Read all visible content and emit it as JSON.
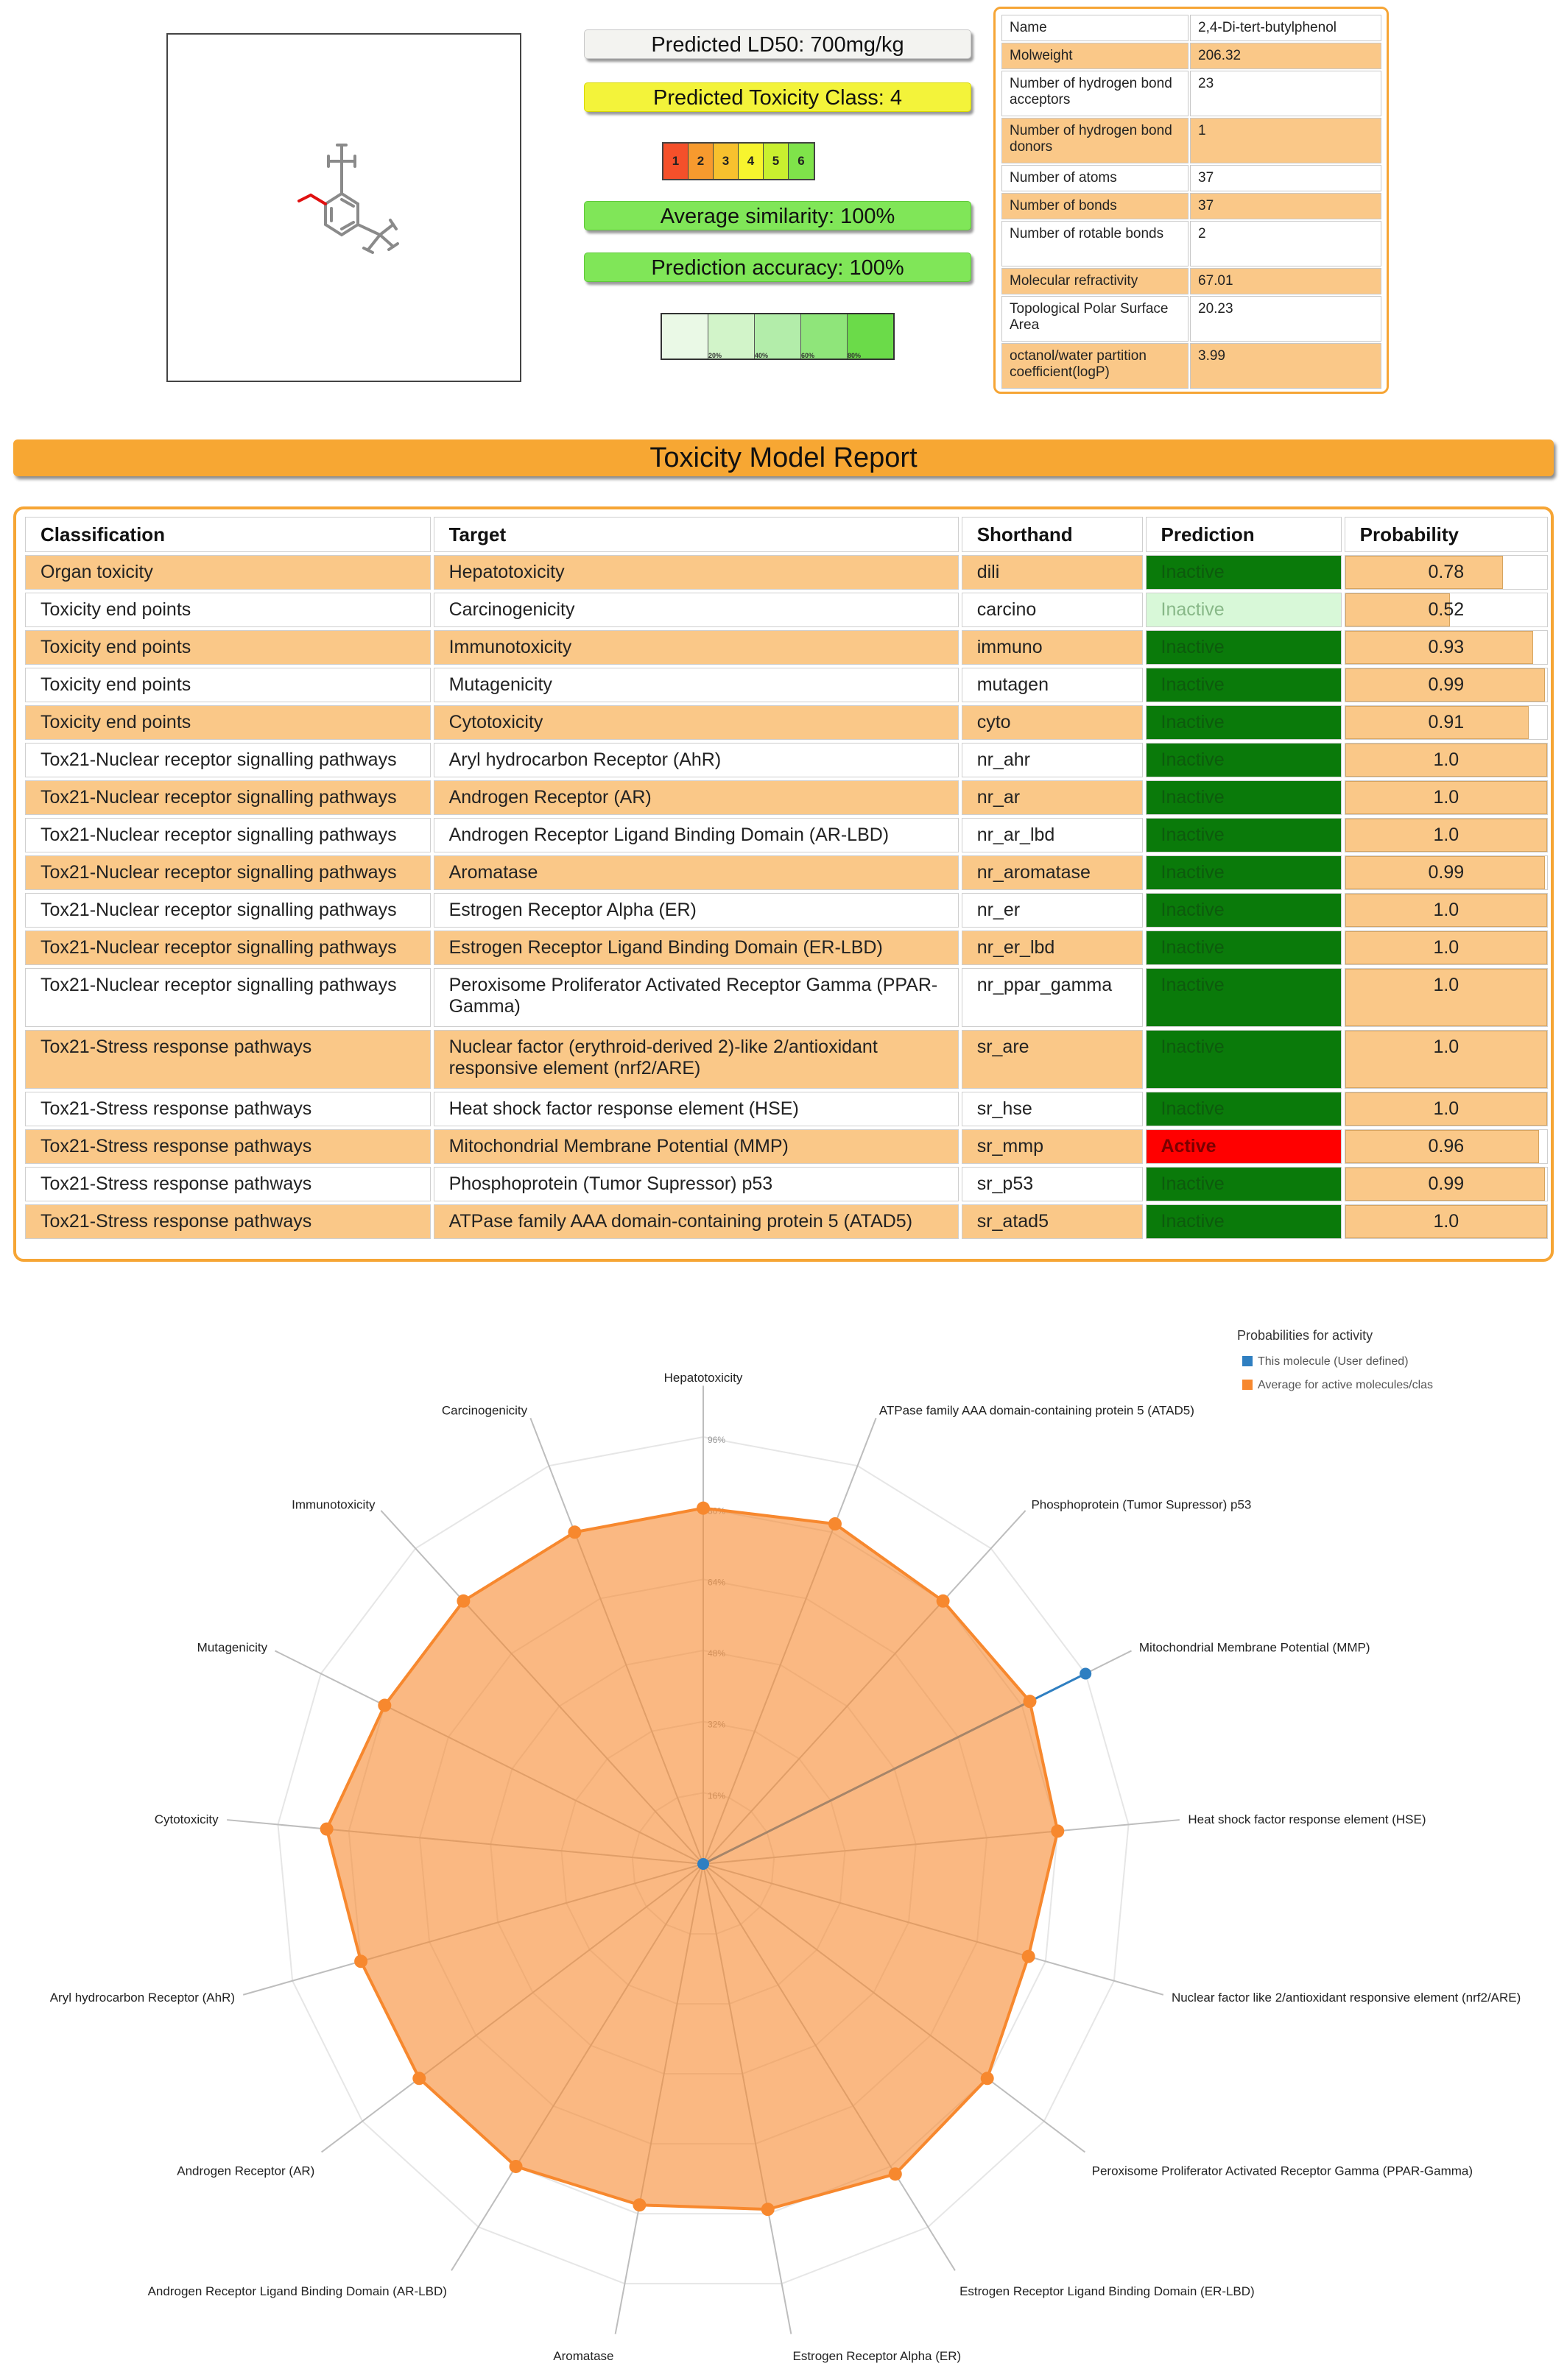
{
  "summary": {
    "ld50": "Predicted LD50: 700mg/kg",
    "toxicity_class": "Predicted Toxicity Class: 4",
    "class_scale": [
      "1",
      "2",
      "3",
      "4",
      "5",
      "6"
    ],
    "class_colors": [
      "#f5502a",
      "#f79a2e",
      "#f7c12e",
      "#f7f42e",
      "#c9f02f",
      "#7fe34a"
    ],
    "average_similarity": "Average similarity: 100%",
    "prediction_accuracy": "Prediction accuracy: 100%",
    "similarity_ticks": [
      "20%",
      "40%",
      "60%",
      "80%"
    ],
    "similarity_colors": [
      "#eaf9e6",
      "#d2f4c9",
      "#b3edaa",
      "#8fe57a",
      "#6bdb49"
    ]
  },
  "properties": [
    {
      "key": "Name",
      "value": "2,4-Di-tert-butylphenol"
    },
    {
      "key": "Molweight",
      "value": "206.32"
    },
    {
      "key": "Number of hydrogen bond acceptors",
      "value": "23"
    },
    {
      "key": "Number of hydrogen bond donors",
      "value": "1"
    },
    {
      "key": "Number of atoms",
      "value": "37"
    },
    {
      "key": "Number of bonds",
      "value": "37"
    },
    {
      "key": "Number of rotable bonds",
      "value": "2"
    },
    {
      "key": "Molecular refractivity",
      "value": "67.01"
    },
    {
      "key": "Topological Polar Surface Area",
      "value": "20.23"
    },
    {
      "key": "octanol/water partition coefficient(logP)",
      "value": "3.99"
    }
  ],
  "report": {
    "title": "Toxicity Model Report",
    "columns": [
      "Classification",
      "Target",
      "Shorthand",
      "Prediction",
      "Probability"
    ],
    "rows": [
      {
        "classification": "Organ toxicity",
        "target": "Hepatotoxicity",
        "shorthand": "dili",
        "prediction": "Inactive",
        "probability": "0.78",
        "prob": 0.78,
        "style": "inactive"
      },
      {
        "classification": "Toxicity end points",
        "target": "Carcinogenicity",
        "shorthand": "carcino",
        "prediction": "Inactive",
        "probability": "0.52",
        "prob": 0.52,
        "style": "weak"
      },
      {
        "classification": "Toxicity end points",
        "target": "Immunotoxicity",
        "shorthand": "immuno",
        "prediction": "Inactive",
        "probability": "0.93",
        "prob": 0.93,
        "style": "inactive"
      },
      {
        "classification": "Toxicity end points",
        "target": "Mutagenicity",
        "shorthand": "mutagen",
        "prediction": "Inactive",
        "probability": "0.99",
        "prob": 0.99,
        "style": "inactive"
      },
      {
        "classification": "Toxicity end points",
        "target": "Cytotoxicity",
        "shorthand": "cyto",
        "prediction": "Inactive",
        "probability": "0.91",
        "prob": 0.91,
        "style": "inactive"
      },
      {
        "classification": "Tox21-Nuclear receptor signalling pathways",
        "target": "Aryl hydrocarbon Receptor (AhR)",
        "shorthand": "nr_ahr",
        "prediction": "Inactive",
        "probability": "1.0",
        "prob": 1.0,
        "style": "inactive"
      },
      {
        "classification": "Tox21-Nuclear receptor signalling pathways",
        "target": "Androgen Receptor (AR)",
        "shorthand": "nr_ar",
        "prediction": "Inactive",
        "probability": "1.0",
        "prob": 1.0,
        "style": "inactive"
      },
      {
        "classification": "Tox21-Nuclear receptor signalling pathways",
        "target": "Androgen Receptor Ligand Binding Domain (AR-LBD)",
        "shorthand": "nr_ar_lbd",
        "prediction": "Inactive",
        "probability": "1.0",
        "prob": 1.0,
        "style": "inactive"
      },
      {
        "classification": "Tox21-Nuclear receptor signalling pathways",
        "target": "Aromatase",
        "shorthand": "nr_aromatase",
        "prediction": "Inactive",
        "probability": "0.99",
        "prob": 0.99,
        "style": "inactive"
      },
      {
        "classification": "Tox21-Nuclear receptor signalling pathways",
        "target": "Estrogen Receptor Alpha (ER)",
        "shorthand": "nr_er",
        "prediction": "Inactive",
        "probability": "1.0",
        "prob": 1.0,
        "style": "inactive"
      },
      {
        "classification": "Tox21-Nuclear receptor signalling pathways",
        "target": "Estrogen Receptor Ligand Binding Domain (ER-LBD)",
        "shorthand": "nr_er_lbd",
        "prediction": "Inactive",
        "probability": "1.0",
        "prob": 1.0,
        "style": "inactive"
      },
      {
        "classification": "Tox21-Nuclear receptor signalling pathways",
        "target": "Peroxisome Proliferator Activated Receptor Gamma (PPAR-Gamma)",
        "shorthand": "nr_ppar_gamma",
        "prediction": "Inactive",
        "probability": "1.0",
        "prob": 1.0,
        "style": "inactive"
      },
      {
        "classification": "Tox21-Stress response pathways",
        "target": "Nuclear factor (erythroid-derived 2)-like 2/antioxidant responsive element (nrf2/ARE)",
        "shorthand": "sr_are",
        "prediction": "Inactive",
        "probability": "1.0",
        "prob": 1.0,
        "style": "inactive"
      },
      {
        "classification": "Tox21-Stress response pathways",
        "target": "Heat shock factor response element (HSE)",
        "shorthand": "sr_hse",
        "prediction": "Inactive",
        "probability": "1.0",
        "prob": 1.0,
        "style": "inactive"
      },
      {
        "classification": "Tox21-Stress response pathways",
        "target": "Mitochondrial Membrane Potential (MMP)",
        "shorthand": "sr_mmp",
        "prediction": "Active",
        "probability": "0.96",
        "prob": 0.96,
        "style": "active"
      },
      {
        "classification": "Tox21-Stress response pathways",
        "target": "Phosphoprotein (Tumor Supressor) p53",
        "shorthand": "sr_p53",
        "prediction": "Inactive",
        "probability": "0.99",
        "prob": 0.99,
        "style": "inactive"
      },
      {
        "classification": "Tox21-Stress response pathways",
        "target": "ATPase family AAA domain-containing protein 5 (ATAD5)",
        "shorthand": "sr_atad5",
        "prediction": "Inactive",
        "probability": "1.0",
        "prob": 1.0,
        "style": "inactive"
      }
    ]
  },
  "chart_data": {
    "type": "radar",
    "legend_title": "Probabilities for activity",
    "legend_position": "top-right",
    "categories": [
      "Hepatotoxicity",
      "ATPase family AAA domain-containing protein 5 (ATAD5)",
      "Phosphoprotein (Tumor Supressor) p53",
      "Mitochondrial Membrane Potential (MMP)",
      "Heat shock factor response element (HSE)",
      "Nuclear factor like 2/antioxidant responsive element (nrf2/ARE)",
      "Peroxisome Proliferator Activated Receptor Gamma (PPAR-Gamma)",
      "Estrogen Receptor Ligand Binding Domain (ER-LBD)",
      "Estrogen Receptor Alpha (ER)",
      "Aromatase",
      "Androgen Receptor Ligand Binding Domain (AR-LBD)",
      "Androgen Receptor (AR)",
      "Aryl hydrocarbon Receptor (AhR)",
      "Cytotoxicity",
      "Mutagenicity",
      "Immunotoxicity",
      "Carcinogenicity"
    ],
    "ticks": [
      "16%",
      "32%",
      "48%",
      "64%",
      "80%",
      "96%"
    ],
    "tick_values": [
      16,
      32,
      48,
      64,
      80,
      96
    ],
    "max": 96,
    "series": [
      {
        "name": "This molecule (User defined)",
        "color": "#2f7fc1",
        "values": [
          0,
          0,
          0,
          96,
          0,
          0,
          0,
          0,
          0,
          0,
          0,
          0,
          0,
          0,
          0,
          0,
          0
        ]
      },
      {
        "name": "Average for active molecules/clas",
        "color": "#f7882e",
        "values": [
          80,
          82,
          80,
          82,
          80,
          76,
          80,
          82,
          79,
          78,
          80,
          80,
          80,
          85,
          80,
          80,
          80
        ]
      }
    ]
  }
}
